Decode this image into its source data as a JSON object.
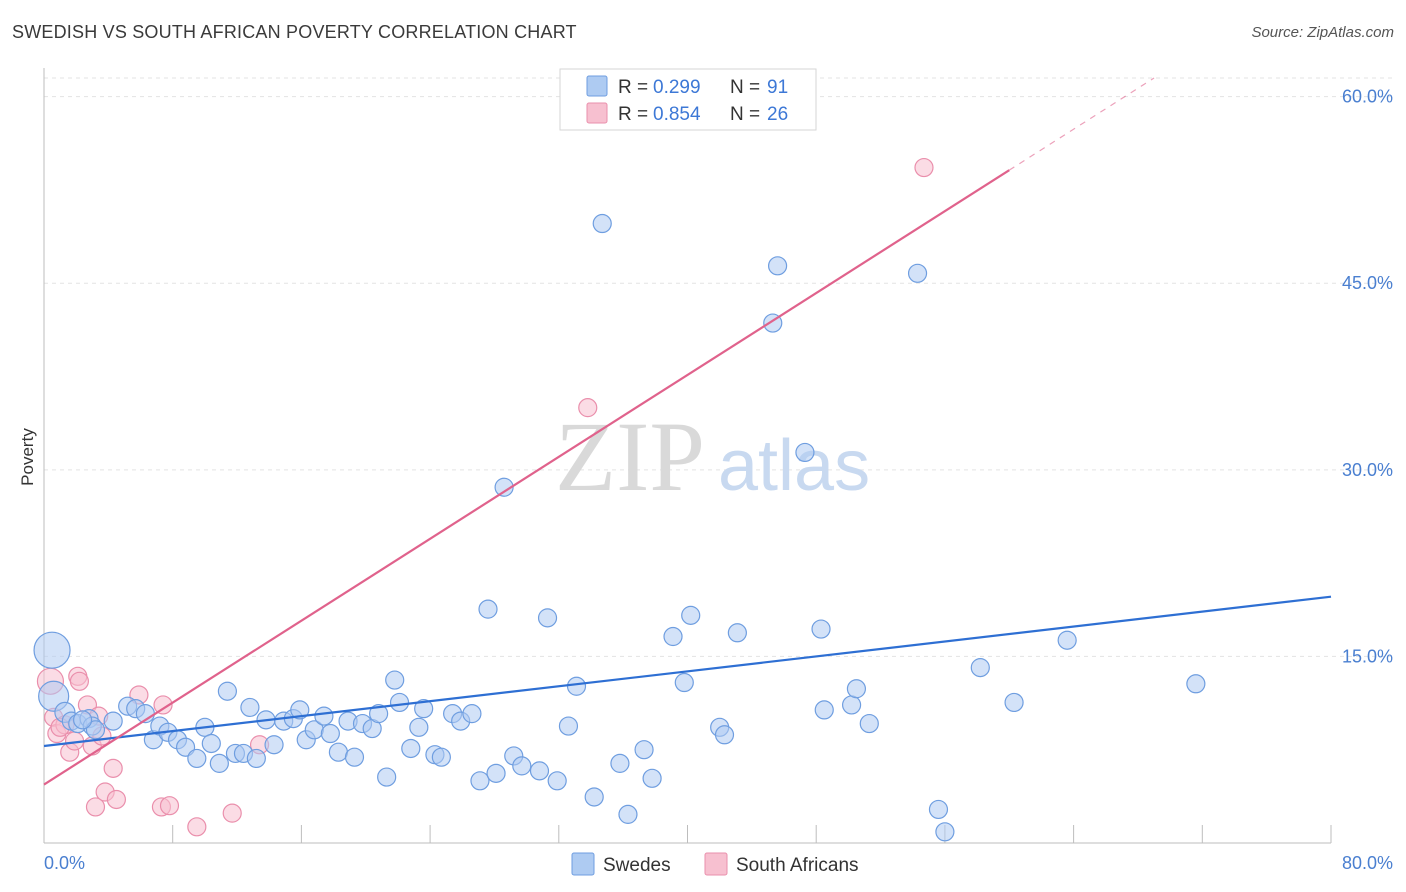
{
  "header": {
    "title": "SWEDISH VS SOUTH AFRICAN POVERTY CORRELATION CHART",
    "source": "Source: ZipAtlas.com"
  },
  "watermark": {
    "zip": "ZIP",
    "atlas": "atlas"
  },
  "legend": {
    "rows": [
      {
        "r_label": "R = ",
        "r_value": "0.299",
        "n_label": "N = ",
        "n_value": "91"
      },
      {
        "r_label": "R = ",
        "r_value": "0.854",
        "n_label": "N = ",
        "n_value": "26"
      }
    ]
  },
  "bottom_legend": {
    "swedes": "Swedes",
    "south_africans": "South Africans"
  },
  "colors": {
    "swedes_fill": "#aecbf2",
    "swedes_stroke": "#6f9ee0",
    "swedes_line": "#2e6fd3",
    "sa_fill": "#f7c0d0",
    "sa_stroke": "#ea8fac",
    "sa_line": "#e0628c",
    "grid": "#e3e3e3",
    "axis": "#bdbdbd"
  },
  "chart_data": {
    "type": "scatter",
    "title": "SWEDISH VS SOUTH AFRICAN POVERTY CORRELATION CHART",
    "xlabel": "",
    "ylabel": "Poverty",
    "xlim": [
      0,
      80
    ],
    "ylim": [
      0,
      61.5
    ],
    "x_tick_labels": [
      "0.0%",
      "80.0%"
    ],
    "y_ticks": [
      15,
      30,
      45,
      60
    ],
    "y_tick_labels": [
      "15.0%",
      "30.0%",
      "45.0%",
      "60.0%"
    ],
    "series": [
      {
        "name": "Swedes",
        "R": 0.299,
        "N": 91,
        "trend": {
          "x": [
            0,
            80
          ],
          "y": [
            7.8,
            19.8
          ],
          "dashed_from": null
        },
        "points": [
          [
            0.5,
            15.5,
            18
          ],
          [
            0.6,
            11.8,
            15
          ],
          [
            1.3,
            10.5,
            10
          ],
          [
            1.7,
            9.8,
            9
          ],
          [
            2.1,
            9.6,
            9
          ],
          [
            2.8,
            10.0,
            9
          ],
          [
            3.0,
            9.4,
            9
          ],
          [
            3.2,
            9.1,
            9
          ],
          [
            4.3,
            9.8,
            9
          ],
          [
            5.2,
            11.0,
            9
          ],
          [
            5.7,
            10.8,
            9
          ],
          [
            6.3,
            10.4,
            9
          ],
          [
            6.8,
            8.3,
            9
          ],
          [
            7.2,
            9.4,
            9
          ],
          [
            7.7,
            8.9,
            9
          ],
          [
            8.3,
            8.3,
            9
          ],
          [
            8.8,
            7.7,
            9
          ],
          [
            9.5,
            6.8,
            9
          ],
          [
            10.0,
            9.3,
            9
          ],
          [
            10.4,
            8.0,
            9
          ],
          [
            10.9,
            6.4,
            9
          ],
          [
            11.4,
            12.2,
            9
          ],
          [
            11.9,
            7.2,
            9
          ],
          [
            12.4,
            7.2,
            9
          ],
          [
            12.8,
            10.9,
            9
          ],
          [
            13.2,
            6.8,
            9
          ],
          [
            13.8,
            9.9,
            9
          ],
          [
            14.3,
            7.9,
            9
          ],
          [
            14.9,
            9.8,
            9
          ],
          [
            15.5,
            10.0,
            9
          ],
          [
            15.9,
            10.7,
            9
          ],
          [
            16.3,
            8.3,
            9
          ],
          [
            16.8,
            9.1,
            9
          ],
          [
            17.4,
            10.2,
            9
          ],
          [
            17.8,
            8.8,
            9
          ],
          [
            18.3,
            7.3,
            9
          ],
          [
            18.9,
            9.8,
            9
          ],
          [
            19.3,
            6.9,
            9
          ],
          [
            19.8,
            9.6,
            9
          ],
          [
            20.4,
            9.2,
            9
          ],
          [
            20.8,
            10.4,
            9
          ],
          [
            21.3,
            5.3,
            9
          ],
          [
            21.8,
            13.1,
            9
          ],
          [
            22.1,
            11.3,
            9
          ],
          [
            22.8,
            7.6,
            9
          ],
          [
            23.3,
            9.3,
            9
          ],
          [
            23.6,
            10.8,
            9
          ],
          [
            24.3,
            7.1,
            9
          ],
          [
            24.7,
            6.9,
            9
          ],
          [
            25.4,
            10.4,
            9
          ],
          [
            25.9,
            9.8,
            9
          ],
          [
            26.6,
            10.4,
            9
          ],
          [
            27.1,
            5.0,
            9
          ],
          [
            27.6,
            18.8,
            9
          ],
          [
            28.1,
            5.6,
            9
          ],
          [
            28.6,
            28.6,
            9
          ],
          [
            29.2,
            7.0,
            9
          ],
          [
            29.7,
            6.2,
            9
          ],
          [
            30.8,
            5.8,
            9
          ],
          [
            31.3,
            18.1,
            9
          ],
          [
            31.9,
            5.0,
            9
          ],
          [
            32.6,
            9.4,
            9
          ],
          [
            33.1,
            12.6,
            9
          ],
          [
            34.2,
            3.7,
            9
          ],
          [
            34.7,
            49.8,
            9
          ],
          [
            35.8,
            6.4,
            9
          ],
          [
            36.3,
            2.3,
            9
          ],
          [
            37.3,
            7.5,
            9
          ],
          [
            37.8,
            5.2,
            9
          ],
          [
            39.1,
            16.6,
            9
          ],
          [
            39.8,
            12.9,
            9
          ],
          [
            40.2,
            18.3,
            9
          ],
          [
            42.0,
            9.3,
            9
          ],
          [
            42.3,
            8.7,
            9
          ],
          [
            43.1,
            16.9,
            9
          ],
          [
            45.3,
            41.8,
            9
          ],
          [
            45.6,
            46.4,
            9
          ],
          [
            47.3,
            31.4,
            9
          ],
          [
            48.3,
            17.2,
            9
          ],
          [
            48.5,
            10.7,
            9
          ],
          [
            50.2,
            11.1,
            9
          ],
          [
            50.5,
            12.4,
            9
          ],
          [
            51.3,
            9.6,
            9
          ],
          [
            54.3,
            45.8,
            9
          ],
          [
            55.6,
            2.7,
            9
          ],
          [
            56.0,
            0.9,
            9
          ],
          [
            58.2,
            14.1,
            9
          ],
          [
            60.3,
            11.3,
            9
          ],
          [
            63.6,
            16.3,
            9
          ],
          [
            71.6,
            12.8,
            9
          ],
          [
            2.4,
            9.9,
            9
          ]
        ]
      },
      {
        "name": "South Africans",
        "R": 0.854,
        "N": 26,
        "trend": {
          "x": [
            0,
            69
          ],
          "y": [
            4.7,
            61.5
          ],
          "dashed_from": 60.0
        },
        "points": [
          [
            0.4,
            13.0,
            13
          ],
          [
            0.6,
            10.1,
            9
          ],
          [
            0.8,
            8.8,
            9
          ],
          [
            1.3,
            9.5,
            9
          ],
          [
            1.6,
            7.3,
            9
          ],
          [
            1.9,
            8.2,
            9
          ],
          [
            2.1,
            13.4,
            9
          ],
          [
            2.2,
            13.0,
            9
          ],
          [
            2.7,
            11.1,
            9
          ],
          [
            3.0,
            7.8,
            9
          ],
          [
            3.2,
            2.9,
            9
          ],
          [
            3.4,
            10.2,
            9
          ],
          [
            3.6,
            8.6,
            9
          ],
          [
            3.8,
            4.1,
            9
          ],
          [
            4.3,
            6.0,
            9
          ],
          [
            4.5,
            3.5,
            9
          ],
          [
            5.9,
            11.9,
            9
          ],
          [
            7.3,
            2.9,
            9
          ],
          [
            7.4,
            11.1,
            9
          ],
          [
            7.8,
            3.0,
            9
          ],
          [
            9.5,
            1.3,
            9
          ],
          [
            11.7,
            2.4,
            9
          ],
          [
            13.4,
            7.9,
            9
          ],
          [
            33.8,
            35.0,
            9
          ],
          [
            54.7,
            54.3,
            9
          ],
          [
            1.0,
            9.3,
            9
          ]
        ]
      }
    ]
  }
}
